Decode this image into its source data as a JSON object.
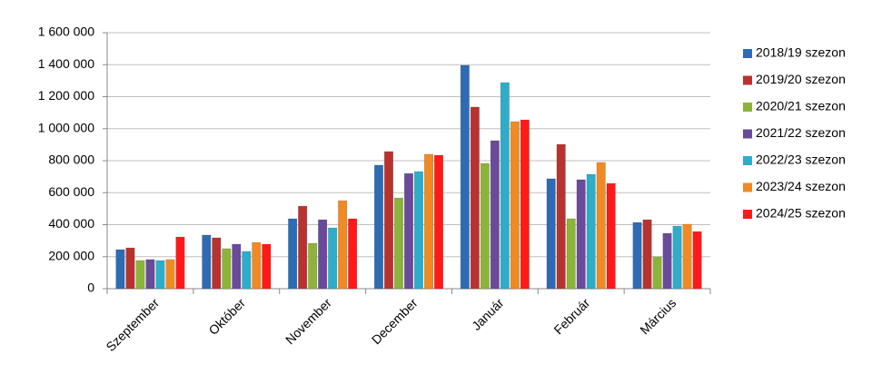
{
  "chart_data": {
    "type": "bar",
    "categories": [
      "Szeptember",
      "Október",
      "November",
      "December",
      "Január",
      "Február",
      "Március"
    ],
    "series": [
      {
        "name": "2018/19 szezon",
        "color": "#2e6bb5",
        "values": [
          244000,
          335000,
          437000,
          772000,
          1396000,
          687000,
          414000
        ]
      },
      {
        "name": "2019/20 szezon",
        "color": "#b83330",
        "values": [
          255000,
          318000,
          516000,
          857000,
          1135000,
          902000,
          431000
        ]
      },
      {
        "name": "2020/21 szezon",
        "color": "#8cb43a",
        "values": [
          176000,
          250000,
          284000,
          567000,
          783000,
          437000,
          199000
        ]
      },
      {
        "name": "2021/22 szezon",
        "color": "#6a4a9a",
        "values": [
          182000,
          278000,
          431000,
          720000,
          925000,
          681000,
          346000
        ]
      },
      {
        "name": "2022/23 szezon",
        "color": "#2fadc8",
        "values": [
          176000,
          233000,
          380000,
          732000,
          1288000,
          715000,
          391000
        ]
      },
      {
        "name": "2023/24 szezon",
        "color": "#f08a24",
        "values": [
          182000,
          289000,
          550000,
          840000,
          1044000,
          789000,
          403000
        ]
      },
      {
        "name": "2024/25 szezon",
        "color": "#ff1a1a",
        "values": [
          323000,
          278000,
          437000,
          834000,
          1055000,
          658000,
          357000
        ]
      }
    ],
    "ylim": [
      0,
      1600000
    ],
    "yticks": [
      0,
      {
        "value": 200000,
        "label": "200 000"
      },
      {
        "value": 400000,
        "label": "400 000"
      },
      {
        "value": 600000,
        "label": "600 000"
      },
      {
        "value": 800000,
        "label": "800 000"
      },
      {
        "value": 1000000,
        "label": "1 000 000"
      },
      {
        "value": 1200000,
        "label": "1 200 000"
      },
      {
        "value": 1400000,
        "label": "1 400 000"
      },
      {
        "value": 1600000,
        "label": "1 600 000"
      }
    ],
    "grid": true,
    "legend": "right"
  }
}
